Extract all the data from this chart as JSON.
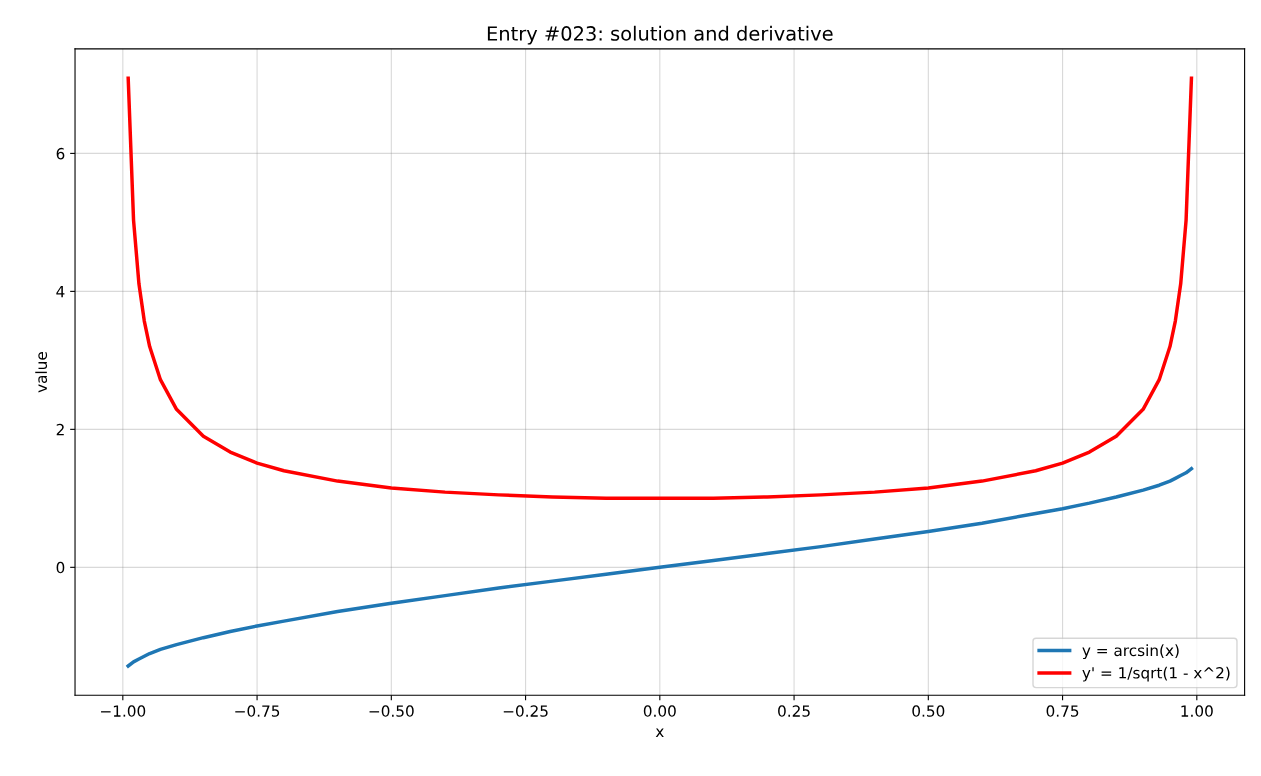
{
  "chart_data": {
    "type": "line",
    "title": "Entry #023: solution and derivative",
    "xlabel": "x",
    "ylabel": "value",
    "x": [
      -0.99,
      -0.98,
      -0.97,
      -0.96,
      -0.95,
      -0.93,
      -0.9,
      -0.85,
      -0.8,
      -0.75,
      -0.7,
      -0.6,
      -0.5,
      -0.4,
      -0.3,
      -0.2,
      -0.1,
      0,
      0.1,
      0.2,
      0.3,
      0.4,
      0.5,
      0.6,
      0.7,
      0.75,
      0.8,
      0.85,
      0.9,
      0.93,
      0.95,
      0.96,
      0.97,
      0.98,
      0.99
    ],
    "series": [
      {
        "name": "y = arcsin(x)",
        "color": "#1f77b4",
        "values": [
          -1.43,
          -1.37,
          -1.33,
          -1.29,
          -1.25,
          -1.19,
          -1.12,
          -1.02,
          -0.93,
          -0.85,
          -0.78,
          -0.64,
          -0.52,
          -0.41,
          -0.3,
          -0.2,
          -0.1,
          0,
          0.1,
          0.2,
          0.3,
          0.41,
          0.52,
          0.64,
          0.78,
          0.85,
          0.93,
          1.02,
          1.12,
          1.19,
          1.25,
          1.29,
          1.33,
          1.37,
          1.43
        ]
      },
      {
        "name": "y' = 1/sqrt(1 - x^2)",
        "color": "#ff0000",
        "values": [
          7.09,
          5.03,
          4.11,
          3.57,
          3.2,
          2.72,
          2.29,
          1.9,
          1.67,
          1.51,
          1.4,
          1.25,
          1.15,
          1.09,
          1.05,
          1.02,
          1.0,
          1.0,
          1.0,
          1.02,
          1.05,
          1.09,
          1.15,
          1.25,
          1.4,
          1.51,
          1.67,
          1.9,
          2.29,
          2.72,
          3.2,
          3.57,
          4.11,
          5.03,
          7.09
        ]
      }
    ],
    "xlim": [
      -1.089,
      1.089
    ],
    "xticks": [
      {
        "value": -1.0,
        "label": "−1.00"
      },
      {
        "value": -0.75,
        "label": "−0.75"
      },
      {
        "value": -0.5,
        "label": "−0.50"
      },
      {
        "value": -0.25,
        "label": "−0.25"
      },
      {
        "value": 0,
        "label": "0.00"
      },
      {
        "value": 0.25,
        "label": "0.25"
      },
      {
        "value": 0.5,
        "label": "0.50"
      },
      {
        "value": 0.75,
        "label": "0.75"
      },
      {
        "value": 1.0,
        "label": "1.00"
      }
    ],
    "ylim": [
      -1.855,
      7.515
    ],
    "yticks": [
      0,
      2,
      4,
      6
    ],
    "grid": true,
    "legend": "bottom right",
    "marker": "none",
    "line_style": "solid"
  }
}
